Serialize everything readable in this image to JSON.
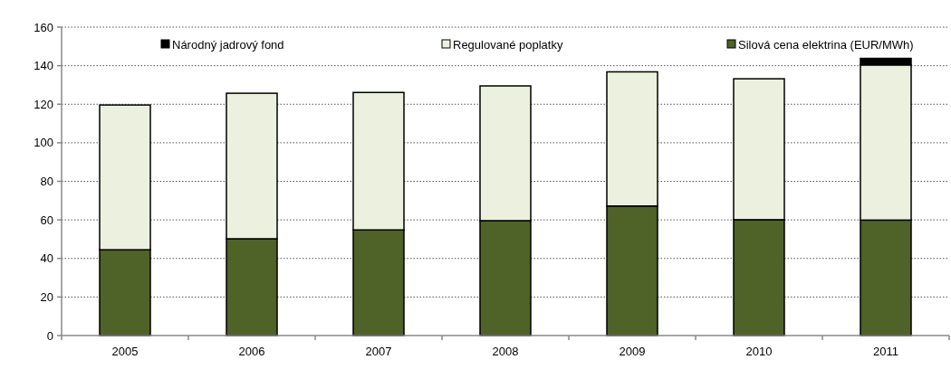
{
  "chart_data": {
    "type": "bar",
    "stacked": true,
    "categories": [
      "2005",
      "2006",
      "2007",
      "2008",
      "2009",
      "2010",
      "2011"
    ],
    "series": [
      {
        "name": "Silová cena elektrina (EUR/MWh)",
        "color": "#4f6228",
        "values": [
          44.5,
          50.2,
          54.8,
          59.6,
          67.2,
          60.1,
          59.9
        ]
      },
      {
        "name": "Regulované poplatky",
        "color": "#ebf1de",
        "values": [
          75.1,
          75.5,
          71.3,
          69.9,
          69.6,
          73.1,
          80.5
        ]
      },
      {
        "name": "Národný jadrový fond",
        "color": "#000000",
        "values": [
          0,
          0,
          0,
          0,
          0,
          0,
          3.4
        ]
      }
    ],
    "ylim": [
      0,
      160
    ],
    "yticks": [
      0,
      20,
      40,
      60,
      80,
      100,
      120,
      140,
      160
    ],
    "grid": "y",
    "legend": "top"
  }
}
